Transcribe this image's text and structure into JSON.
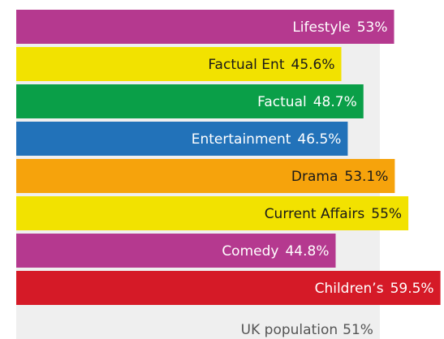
{
  "chart_data": {
    "type": "bar",
    "orientation": "horizontal",
    "categories": [
      "Lifestyle",
      "Factual Ent",
      "Factual",
      "Entertainment",
      "Drama",
      "Current Affairs",
      "Comedy",
      "Children’s"
    ],
    "values": [
      53,
      45.6,
      48.7,
      46.5,
      53.1,
      55,
      44.8,
      59.5
    ],
    "value_labels": [
      "53%",
      "45.6%",
      "48.7%",
      "46.5%",
      "53.1%",
      "55%",
      "44.8%",
      "59.5%"
    ],
    "colors": [
      "#b5398f",
      "#f2e200",
      "#0a9f48",
      "#2272b9",
      "#f6a30c",
      "#f2e200",
      "#b5398f",
      "#d51a27"
    ],
    "label_colors": [
      "#ffffff",
      "#1a1a1a",
      "#ffffff",
      "#ffffff",
      "#1a1a1a",
      "#1a1a1a",
      "#ffffff",
      "#ffffff"
    ],
    "reference": {
      "name": "UK population",
      "value": 51,
      "value_label": "51%",
      "color": "#efefef"
    },
    "xlim": [
      0,
      60
    ]
  }
}
